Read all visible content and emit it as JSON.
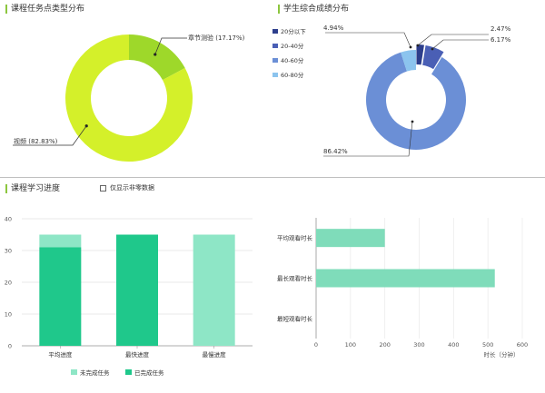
{
  "sections": {
    "task_types_title": "课程任务点类型分布",
    "scores_title": "学生综合成绩分布",
    "progress_title": "课程学习进度"
  },
  "filter": {
    "nonzero_label": "仅显示非零数据",
    "checked": false
  },
  "chart_data": [
    {
      "id": "task-types",
      "type": "pie",
      "donut": true,
      "slices": [
        {
          "label": "章节测验",
          "value": 17.17,
          "pct_label": "(17.17%)",
          "color": "#9ed82a"
        },
        {
          "label": "视频",
          "value": 82.83,
          "pct_label": "(82.83%)",
          "color": "#d4f02a"
        }
      ]
    },
    {
      "id": "score-dist",
      "type": "pie",
      "donut": true,
      "legend": [
        "20分以下",
        "20-40分",
        "40-60分",
        "60-80分"
      ],
      "slices": [
        {
          "label": "20分以下",
          "value": 2.47,
          "pct_label": "2.47%",
          "color": "#2d3e8c"
        },
        {
          "label": "20-40分",
          "value": 6.17,
          "pct_label": "6.17%",
          "color": "#4a5fb5"
        },
        {
          "label": "40-60分",
          "value": 86.42,
          "pct_label": "86.42%",
          "color": "#6b8fd6"
        },
        {
          "label": "60-80分",
          "value": 4.94,
          "pct_label": "4.94%",
          "color": "#8cc4ee"
        }
      ]
    },
    {
      "id": "progress",
      "type": "bar",
      "stacked": true,
      "categories": [
        "平均进度",
        "最快进度",
        "最慢进度"
      ],
      "series": [
        {
          "name": "已完成任务",
          "values": [
            31,
            35,
            0
          ],
          "color": "#1fc88b"
        },
        {
          "name": "未完成任务",
          "values": [
            4,
            0,
            35
          ],
          "color": "#8ee6c6"
        }
      ],
      "yticks": [
        "0",
        "10",
        "20",
        "30",
        "40"
      ],
      "ylim": [
        0,
        40
      ],
      "legend_order": [
        "未完成任务",
        "已完成任务"
      ]
    },
    {
      "id": "watch-time",
      "type": "bar",
      "orientation": "horizontal",
      "categories": [
        "平均观看时长",
        "最长观看时长",
        "最短观看时长"
      ],
      "values": [
        200,
        520,
        0
      ],
      "color": "#7fdcba",
      "xticks": [
        "0",
        "100",
        "200",
        "300",
        "400",
        "500",
        "600"
      ],
      "xlim": [
        0,
        600
      ],
      "xlabel": "时长（分钟）"
    }
  ]
}
